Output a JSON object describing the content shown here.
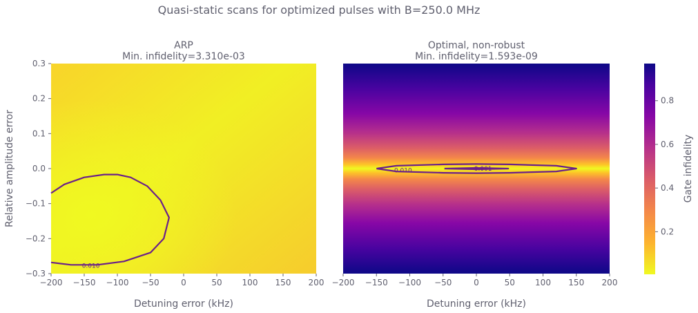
{
  "figure": {
    "title": "Quasi-static scans for optimized pulses with B=250.0 MHz"
  },
  "colorbar": {
    "label": "Gate infidelity",
    "ticks": [
      "0.2",
      "0.4",
      "0.6",
      "0.8"
    ],
    "tick_values": [
      0.2,
      0.4,
      0.6,
      0.8
    ],
    "range": [
      0.005,
      0.97
    ]
  },
  "chart_data": [
    {
      "type": "heatmap",
      "title": "ARP",
      "subtitle": "Min. infidelity=3.310e-03",
      "xlabel": "Detuning error (kHz)",
      "ylabel": "Relative amplitude error",
      "xlim": [
        -200,
        200
      ],
      "ylim": [
        -0.3,
        0.3
      ],
      "xticks": [
        "−200",
        "−150",
        "−100",
        "−50",
        "0",
        "50",
        "100",
        "150",
        "200"
      ],
      "xtick_values": [
        -200,
        -150,
        -100,
        -50,
        0,
        50,
        100,
        150,
        200
      ],
      "yticks": [
        "−0.3",
        "−0.2",
        "−0.1",
        "0.0",
        "0.1",
        "0.2",
        "0.3"
      ],
      "ytick_values": [
        -0.3,
        -0.2,
        -0.1,
        0.0,
        0.1,
        0.2,
        0.3
      ],
      "colormap": "plasma_r",
      "min_infidelity_location": [
        -130,
        -0.14
      ],
      "contours": [
        {
          "level": "0.010",
          "points": [
            [
              -200,
              -0.07
            ],
            [
              -180,
              -0.045
            ],
            [
              -150,
              -0.025
            ],
            [
              -120,
              -0.017
            ],
            [
              -100,
              -0.017
            ],
            [
              -80,
              -0.025
            ],
            [
              -55,
              -0.05
            ],
            [
              -35,
              -0.09
            ],
            [
              -22,
              -0.14
            ],
            [
              -30,
              -0.2
            ],
            [
              -50,
              -0.24
            ],
            [
              -90,
              -0.265
            ],
            [
              -130,
              -0.275
            ],
            [
              -170,
              -0.275
            ],
            [
              -200,
              -0.268
            ]
          ],
          "label_at": [
            -140,
            -0.277
          ]
        }
      ]
    },
    {
      "type": "heatmap",
      "title": "Optimal, non-robust",
      "subtitle": "Min. infidelity=1.593e-09",
      "xlabel": "Detuning error (kHz)",
      "xlim": [
        -200,
        200
      ],
      "ylim": [
        -0.3,
        0.3
      ],
      "xticks": [
        "−200",
        "−150",
        "−100",
        "−50",
        "0",
        "50",
        "100",
        "150",
        "200"
      ],
      "xtick_values": [
        -200,
        -150,
        -100,
        -50,
        0,
        50,
        100,
        150,
        200
      ],
      "colormap": "plasma_r",
      "contours": [
        {
          "level": "0.010",
          "points": [
            [
              -150,
              0.0
            ],
            [
              -120,
              0.008
            ],
            [
              -50,
              0.012
            ],
            [
              0,
              0.013
            ],
            [
              50,
              0.012
            ],
            [
              120,
              0.008
            ],
            [
              150,
              0.0
            ],
            [
              120,
              -0.008
            ],
            [
              50,
              -0.012
            ],
            [
              0,
              -0.013
            ],
            [
              -50,
              -0.012
            ],
            [
              -120,
              -0.008
            ],
            [
              -150,
              0.0
            ]
          ],
          "label_at": [
            -110,
            -0.005
          ]
        },
        {
          "level": "0.001",
          "points": [
            [
              -48,
              0.0
            ],
            [
              0,
              0.002
            ],
            [
              48,
              0.0
            ],
            [
              0,
              -0.002
            ],
            [
              -48,
              0.0
            ]
          ],
          "label_at": [
            10,
            0.0
          ]
        }
      ]
    }
  ]
}
